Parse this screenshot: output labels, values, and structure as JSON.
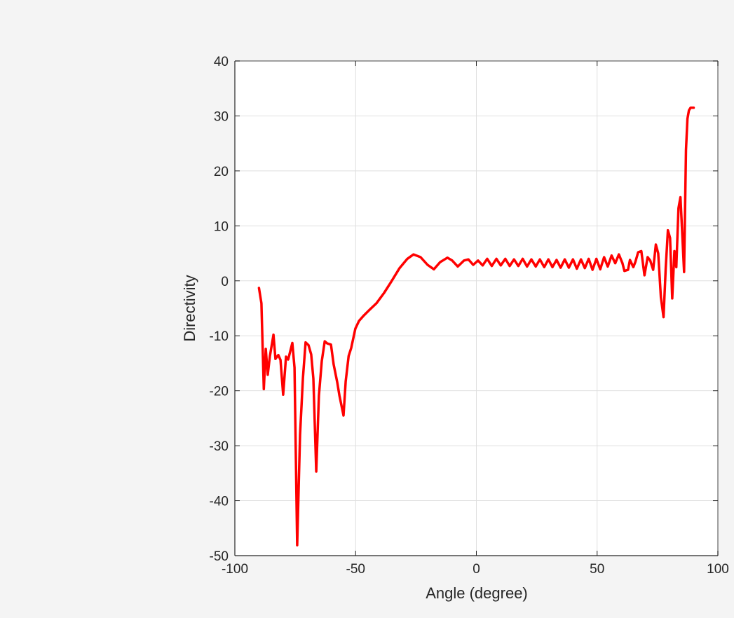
{
  "chart_data": {
    "type": "line",
    "title": "",
    "xlabel": "Angle (degree)",
    "ylabel": "Directivity",
    "xlim": [
      -100,
      100
    ],
    "ylim": [
      -50,
      40
    ],
    "xticks": [
      -100,
      -50,
      0,
      50,
      100
    ],
    "yticks": [
      -50,
      -40,
      -30,
      -20,
      -10,
      0,
      10,
      20,
      30,
      40
    ],
    "xtick_labels": [
      "-100",
      "-50",
      "0",
      "50",
      "100"
    ],
    "ytick_labels": [
      "-50",
      "-40",
      "-30",
      "-20",
      "-10",
      "0",
      "10",
      "20",
      "30",
      "40"
    ],
    "grid": true,
    "legend": null,
    "series": [
      {
        "name": "Directivity",
        "color": "#ff0000",
        "line_width": 3.5,
        "x": [
          -90,
          -89,
          -88,
          -87.2,
          -86.4,
          -85.5,
          -84,
          -83.2,
          -82,
          -81.1,
          -80,
          -78.8,
          -77.9,
          -76.2,
          -75.3,
          -74.2,
          -73,
          -71.8,
          -70.7,
          -69.5,
          -68.4,
          -67.5,
          -66.3,
          -65.2,
          -64,
          -62.8,
          -61.7,
          -60.2,
          -59.1,
          -57.6,
          -56.7,
          -55,
          -54.1,
          -52.9,
          -51.8,
          -50.1,
          -48.6,
          -46.6,
          -44.3,
          -41.4,
          -38.2,
          -35.3,
          -31.8,
          -28.6,
          -26,
          -23.1,
          -20.2,
          -17.6,
          -15,
          -12,
          -10,
          -7.7,
          -5.1,
          -3.3,
          -1.3,
          0.7,
          2.6,
          4.5,
          6.4,
          8.3,
          10.1,
          12,
          13.8,
          15.6,
          17.4,
          19.2,
          21,
          22.8,
          24.6,
          26.3,
          28.1,
          29.8,
          31.5,
          33.2,
          34.9,
          36.6,
          38.3,
          40,
          41.6,
          43.3,
          44.9,
          46.5,
          48.1,
          49.7,
          51.3,
          52.9,
          54.4,
          56,
          57.5,
          59,
          60.5,
          61.3,
          62.8,
          63.6,
          65,
          65.8,
          67,
          68.3,
          69.6,
          70.9,
          72,
          73.2,
          74.3,
          75.3,
          76.4,
          77.5,
          78.4,
          79.3,
          80.2,
          81.1,
          82,
          82.8,
          83.7,
          84.5,
          85.3,
          86,
          86.8,
          87.4,
          88,
          88.7,
          89.3,
          90
        ],
        "y": [
          -1.3,
          -4.1,
          -19.7,
          -12.4,
          -17.1,
          -13.7,
          -9.8,
          -14.2,
          -13.5,
          -14.4,
          -20.7,
          -13.8,
          -14.3,
          -11.3,
          -15.8,
          -48.1,
          -28,
          -17.7,
          -11.2,
          -11.7,
          -13.4,
          -17.8,
          -34.7,
          -20.9,
          -14.6,
          -11,
          -11.4,
          -11.6,
          -15.2,
          -18.5,
          -20.9,
          -24.5,
          -18.3,
          -13.7,
          -12.2,
          -8.7,
          -7.3,
          -6.3,
          -5.3,
          -4.1,
          -2.2,
          -0.2,
          2.3,
          4.0,
          4.8,
          4.3,
          2.9,
          2.1,
          3.4,
          4.2,
          3.7,
          2.6,
          3.7,
          3.9,
          2.9,
          3.7,
          2.8,
          4.0,
          2.7,
          4.0,
          2.8,
          4.0,
          2.7,
          3.9,
          2.7,
          4.0,
          2.6,
          3.9,
          2.6,
          3.9,
          2.5,
          3.9,
          2.5,
          3.8,
          2.4,
          3.9,
          2.4,
          3.9,
          2.2,
          3.9,
          2.3,
          4.0,
          2.0,
          4.0,
          2.1,
          4.3,
          2.6,
          4.6,
          3.2,
          4.8,
          3.2,
          1.8,
          2.0,
          3.8,
          2.5,
          3.4,
          5.2,
          5.4,
          1.0,
          4.3,
          3.7,
          2.0,
          6.6,
          5.0,
          -3.0,
          -6.6,
          2.3,
          9.2,
          7.8,
          -3.2,
          5.4,
          2.5,
          13.2,
          15.2,
          8.0,
          1.6,
          23.8,
          29.5,
          31.0,
          31.5,
          31.5,
          31.5
        ]
      }
    ]
  },
  "figure": {
    "background": "#f4f4f4",
    "axes_background": "#ffffff",
    "axis_color": "#262626",
    "grid_color": "#dfdfdf",
    "line_color": "#ff0000"
  }
}
